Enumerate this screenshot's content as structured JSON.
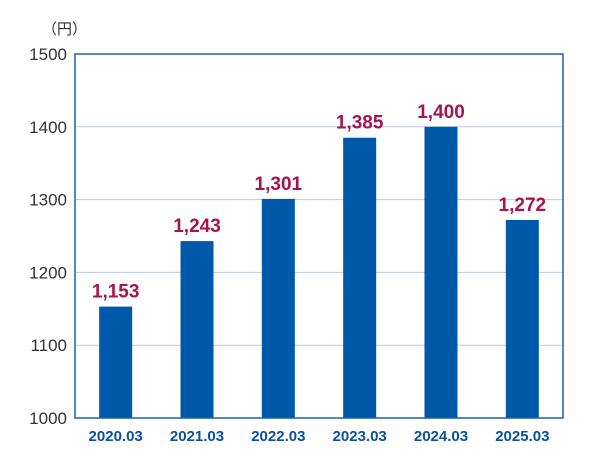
{
  "chart_data": {
    "type": "bar",
    "unit": "（円）",
    "categories": [
      "2020.03",
      "2021.03",
      "2022.03",
      "2023.03",
      "2024.03",
      "2025.03"
    ],
    "values": [
      1153,
      1243,
      1301,
      1385,
      1400,
      1272
    ],
    "value_labels": [
      "1,153",
      "1,243",
      "1,301",
      "1,385",
      "1,400",
      "1,272"
    ],
    "ylim": [
      1000,
      1500
    ],
    "yticks": [
      "1000",
      "1100",
      "1200",
      "1300",
      "1400",
      "1500"
    ],
    "grid": true,
    "colors": {
      "bar": "#0058a8",
      "value_label": "#a8124f",
      "category_label": "#0a4fa0",
      "grid": "#b8cde0",
      "frame": "#1f5fa8"
    }
  }
}
